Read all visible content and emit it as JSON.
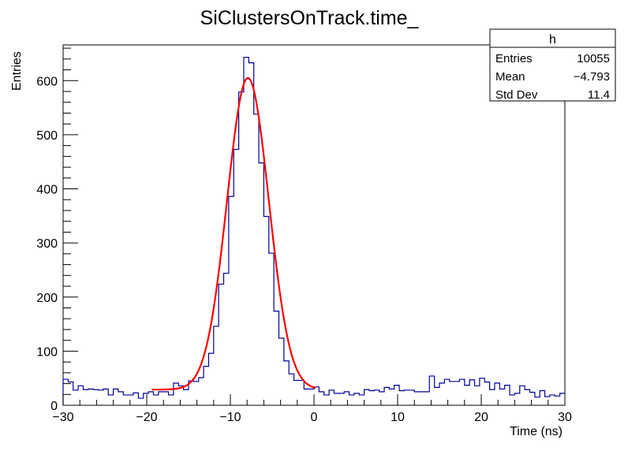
{
  "chart_data": {
    "type": "histogram",
    "title": "SiClustersOnTrack.time_",
    "xlabel": "Time (ns)",
    "ylabel": "Entries",
    "xlim": [
      -30,
      30
    ],
    "ylim": [
      0,
      666
    ],
    "bin_width": 0.6,
    "x_ticks": [
      -30,
      -20,
      -10,
      0,
      10,
      20,
      30
    ],
    "x_tick_labels": [
      "−30",
      "−20",
      "−10",
      "0",
      "10",
      "20",
      "30"
    ],
    "y_ticks": [
      0,
      100,
      200,
      300,
      400,
      500,
      600
    ],
    "y_tick_labels": [
      "0",
      "100",
      "200",
      "300",
      "400",
      "500",
      "600"
    ],
    "histogram_color": "#000099",
    "fit_color": "#ff0000",
    "values": [
      48,
      43,
      28,
      36,
      29,
      30,
      29,
      28,
      30,
      19,
      30,
      25,
      19,
      19,
      23,
      13,
      22,
      25,
      19,
      25,
      25,
      19,
      41,
      36,
      29,
      45,
      44,
      51,
      72,
      96,
      146,
      224,
      244,
      386,
      473,
      579,
      643,
      633,
      538,
      448,
      349,
      281,
      174,
      124,
      82,
      58,
      46,
      46,
      30,
      30,
      34,
      25,
      19,
      28,
      22,
      22,
      25,
      19,
      22,
      19,
      29,
      27,
      28,
      25,
      33,
      30,
      37,
      27,
      28,
      28,
      25,
      25,
      25,
      54,
      33,
      41,
      48,
      44,
      44,
      48,
      37,
      47,
      36,
      50,
      43,
      29,
      41,
      30,
      37,
      19,
      22,
      36,
      29,
      24,
      15,
      27,
      16,
      19,
      17,
      22
    ],
    "fit": {
      "function": "gaus+pol0",
      "range": [
        -19.4,
        0.2
      ],
      "amplitude": 576,
      "mean": -7.9,
      "sigma": 2.5,
      "constant": 29
    },
    "stats_box": {
      "title": "h",
      "rows": [
        {
          "label": "Entries",
          "value": "10055"
        },
        {
          "label": "Mean",
          "value": "−4.793"
        },
        {
          "label": "Std Dev",
          "value": "11.4"
        }
      ]
    }
  }
}
